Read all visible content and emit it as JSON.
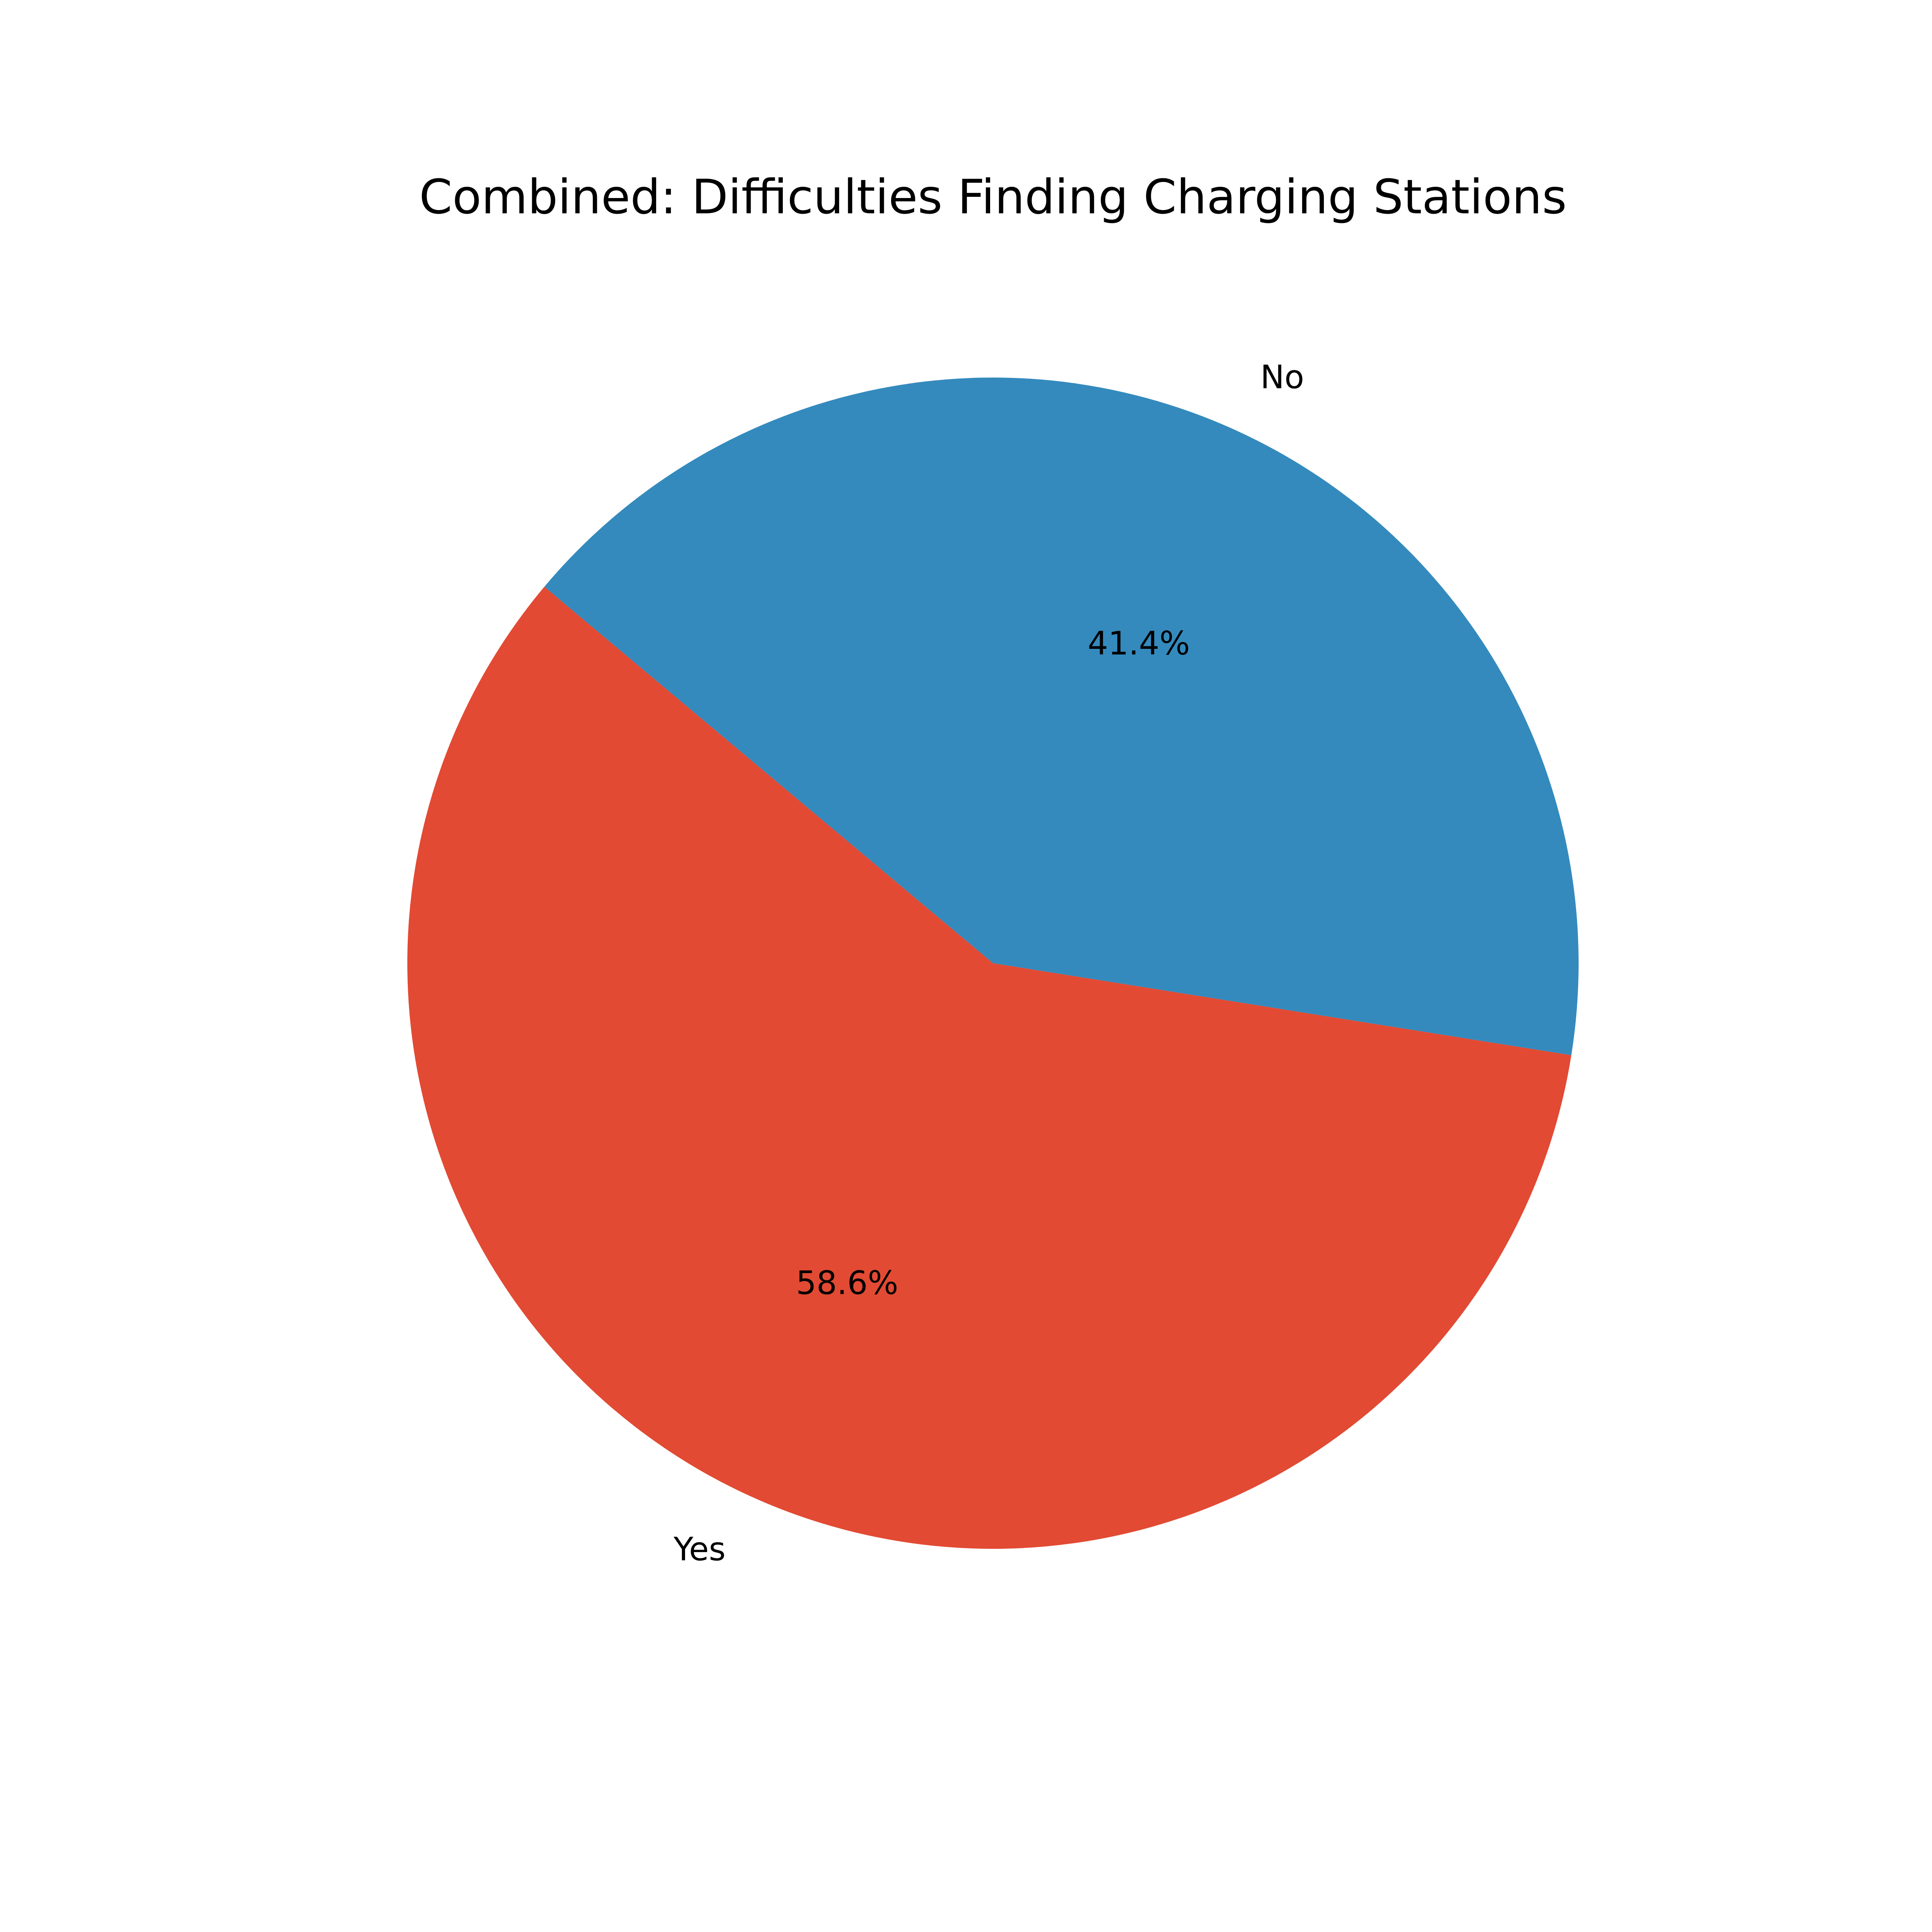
{
  "chart_data": {
    "type": "pie",
    "title": "Combined: Difficulties Finding Charging Stations",
    "start_angle_deg": 140,
    "counterclock": true,
    "slices": [
      {
        "label": "Yes",
        "value": 58.6,
        "pct_label": "58.6%",
        "color": "#E24A33"
      },
      {
        "label": "No",
        "value": 41.4,
        "pct_label": "41.4%",
        "color": "#348ABD"
      }
    ],
    "legend": "none"
  }
}
